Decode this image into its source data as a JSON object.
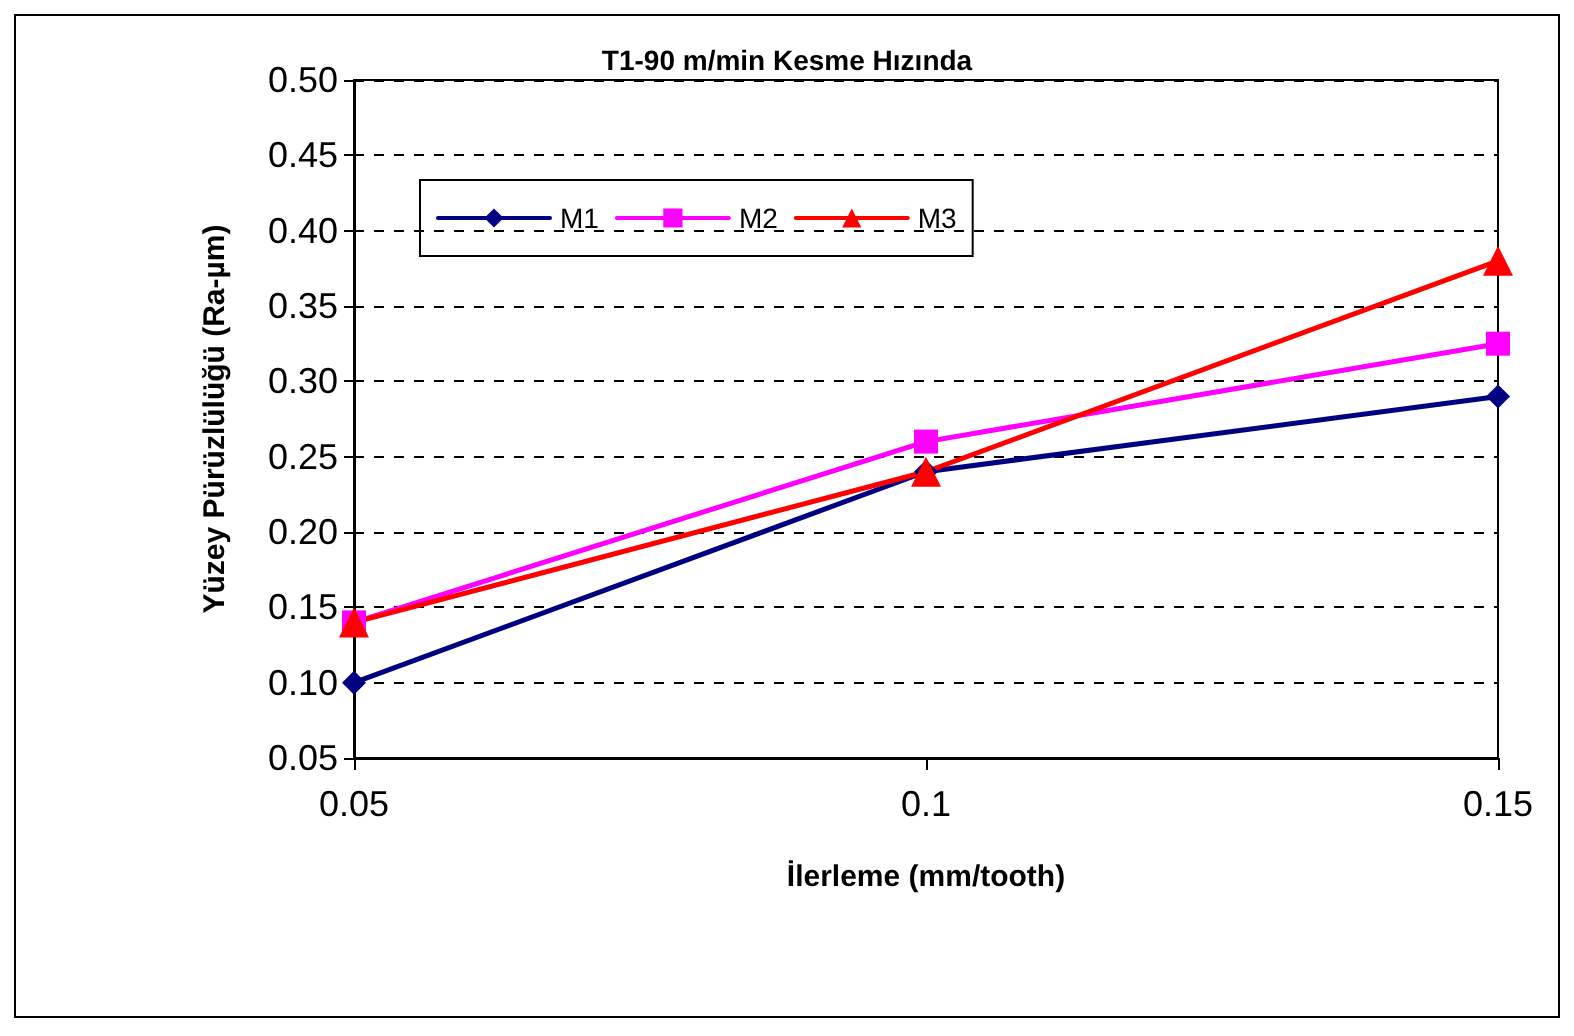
{
  "chart_data": {
    "type": "line",
    "title": "T1-90 m/min Kesme Hızında",
    "xlabel": "İlerleme (mm/tooth)",
    "ylabel": "Yüzey Pürüzlülüğü (Ra-µm)",
    "categories": [
      "0.05",
      "0.1",
      "0.15"
    ],
    "series": [
      {
        "name": "M1",
        "color": "#000080",
        "marker": "diamond",
        "values": [
          0.1,
          0.24,
          0.29
        ]
      },
      {
        "name": "M2",
        "color": "#ff00ff",
        "marker": "square",
        "values": [
          0.14,
          0.26,
          0.325
        ]
      },
      {
        "name": "M3",
        "color": "#ff0000",
        "marker": "triangle",
        "values": [
          0.14,
          0.24,
          0.38
        ]
      }
    ],
    "ylim": [
      0.05,
      0.5
    ],
    "yticks": [
      0.05,
      {
        "value": 0.1,
        "label": "0.10"
      },
      0.15,
      {
        "value": 0.2,
        "label": "0.20"
      },
      0.25,
      {
        "value": 0.3,
        "label": "0.30"
      },
      0.35,
      {
        "value": 0.4,
        "label": "0.40"
      },
      0.45,
      {
        "value": 0.5,
        "label": "0.50"
      }
    ],
    "grid": "y",
    "legend": "top left",
    "line_style": "solid"
  }
}
